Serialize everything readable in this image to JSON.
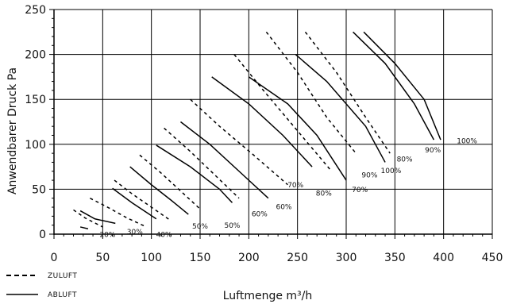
{
  "chart_data": {
    "type": "line",
    "title": "",
    "xlabel": "Luftmenge m³/h",
    "ylabel": "Anwendbarer Druck Pa",
    "xlim": [
      0,
      450
    ],
    "ylim": [
      0,
      250
    ],
    "x_ticks": [
      0,
      50,
      100,
      150,
      200,
      250,
      300,
      350,
      400,
      450
    ],
    "y_ticks": [
      0,
      50,
      100,
      150,
      200,
      250
    ],
    "x_ticks_labels": [
      "0",
      "50",
      "100",
      "150",
      "200",
      "250",
      "300",
      "350",
      "400",
      "450"
    ],
    "y_ticks_labels": [
      "0",
      "50",
      "100",
      "150",
      "200",
      "250"
    ],
    "grid": true,
    "legend_position": "bottom-left",
    "legend": [
      {
        "style": "dashed",
        "label": "ZULUFT"
      },
      {
        "style": "solid",
        "label": "ABLUFT"
      }
    ],
    "series": [
      {
        "group": "ZULUFT",
        "label": "20%",
        "x": [
          20,
          32,
          50
        ],
        "y": [
          27,
          18,
          8
        ]
      },
      {
        "group": "ABLUFT",
        "label": "20%",
        "x": [
          27,
          35
        ],
        "y": [
          8,
          6
        ]
      },
      {
        "group": "ABLUFT",
        "label": "20%",
        "x": [
          27,
          42,
          63
        ],
        "y": [
          26,
          17,
          12
        ]
      },
      {
        "group": "ZULUFT",
        "label": "30%",
        "x": [
          37,
          55,
          75,
          95
        ],
        "y": [
          40,
          30,
          18,
          8
        ]
      },
      {
        "group": "ABLUFT",
        "label": "30%",
        "x": [
          60,
          80,
          105
        ],
        "y": [
          51,
          35,
          17
        ]
      },
      {
        "group": "ZULUFT",
        "label": "40%",
        "x": [
          62,
          80,
          100,
          120
        ],
        "y": [
          60,
          45,
          30,
          15
        ]
      },
      {
        "group": "ABLUFT",
        "label": "40%",
        "x": [
          78,
          100,
          120,
          138
        ],
        "y": [
          75,
          55,
          38,
          22
        ]
      },
      {
        "group": "ZULUFT",
        "label": "50%",
        "x": [
          88,
          110,
          130,
          150
        ],
        "y": [
          88,
          68,
          48,
          28
        ]
      },
      {
        "group": "ABLUFT",
        "label": "50%",
        "x": [
          105,
          140,
          170,
          183
        ],
        "y": [
          99,
          75,
          50,
          35
        ]
      },
      {
        "group": "ZULUFT",
        "label": "60%",
        "x": [
          113,
          140,
          165,
          190
        ],
        "y": [
          118,
          92,
          66,
          40
        ]
      },
      {
        "group": "ABLUFT",
        "label": "60%",
        "x": [
          130,
          160,
          190,
          220
        ],
        "y": [
          125,
          100,
          70,
          40
        ]
      },
      {
        "group": "ZULUFT",
        "label": "70%",
        "x": [
          140,
          170,
          205,
          240
        ],
        "y": [
          150,
          120,
          88,
          55
        ]
      },
      {
        "group": "ABLUFT",
        "label": "70%",
        "x": [
          162,
          200,
          235,
          265
        ],
        "y": [
          175,
          145,
          110,
          75
        ]
      },
      {
        "group": "ZULUFT",
        "label": "80%",
        "x": [
          185,
          215,
          250,
          285
        ],
        "y": [
          200,
          160,
          115,
          70
        ]
      },
      {
        "group": "ABLUFT",
        "label": "80%",
        "x": [
          200,
          240,
          270,
          300
        ],
        "y": [
          175,
          145,
          110,
          60
        ]
      },
      {
        "group": "ZULUFT",
        "label": "90%",
        "x": [
          218,
          250,
          280,
          310
        ],
        "y": [
          225,
          180,
          130,
          90
        ]
      },
      {
        "group": "ABLUFT",
        "label": "90%",
        "x": [
          248,
          280,
          320,
          340
        ],
        "y": [
          200,
          170,
          120,
          80
        ]
      },
      {
        "group": "ZULUFT",
        "label": "100%",
        "x": [
          258,
          290,
          320,
          345
        ],
        "y": [
          225,
          180,
          130,
          90
        ]
      },
      {
        "group": "ABLUFT",
        "label": "100%",
        "x": [
          307,
          340,
          370,
          390
        ],
        "y": [
          225,
          190,
          145,
          105
        ]
      },
      {
        "group": "ABLUFT",
        "label": "100%",
        "x": [
          318,
          350,
          380,
          397
        ],
        "y": [
          225,
          190,
          150,
          105
        ]
      }
    ],
    "point_labels": [
      {
        "text": "20%",
        "x": 55,
        "y": -3
      },
      {
        "text": "30%",
        "x": 83,
        "y": 0
      },
      {
        "text": "40%",
        "x": 113,
        "y": -3
      },
      {
        "text": "50%",
        "x": 150,
        "y": 6
      },
      {
        "text": "50%",
        "x": 183,
        "y": 7
      },
      {
        "text": "60%",
        "x": 211,
        "y": 20
      },
      {
        "text": "60%",
        "x": 236,
        "y": 28
      },
      {
        "text": "70%",
        "x": 248,
        "y": 52
      },
      {
        "text": "80%",
        "x": 277,
        "y": 43
      },
      {
        "text": "70%",
        "x": 314,
        "y": 47
      },
      {
        "text": "90%",
        "x": 324,
        "y": 63
      },
      {
        "text": "100%",
        "x": 346,
        "y": 68
      },
      {
        "text": "80%",
        "x": 360,
        "y": 81
      },
      {
        "text": "90%",
        "x": 389,
        "y": 91
      },
      {
        "text": "100%",
        "x": 424,
        "y": 101
      }
    ]
  }
}
